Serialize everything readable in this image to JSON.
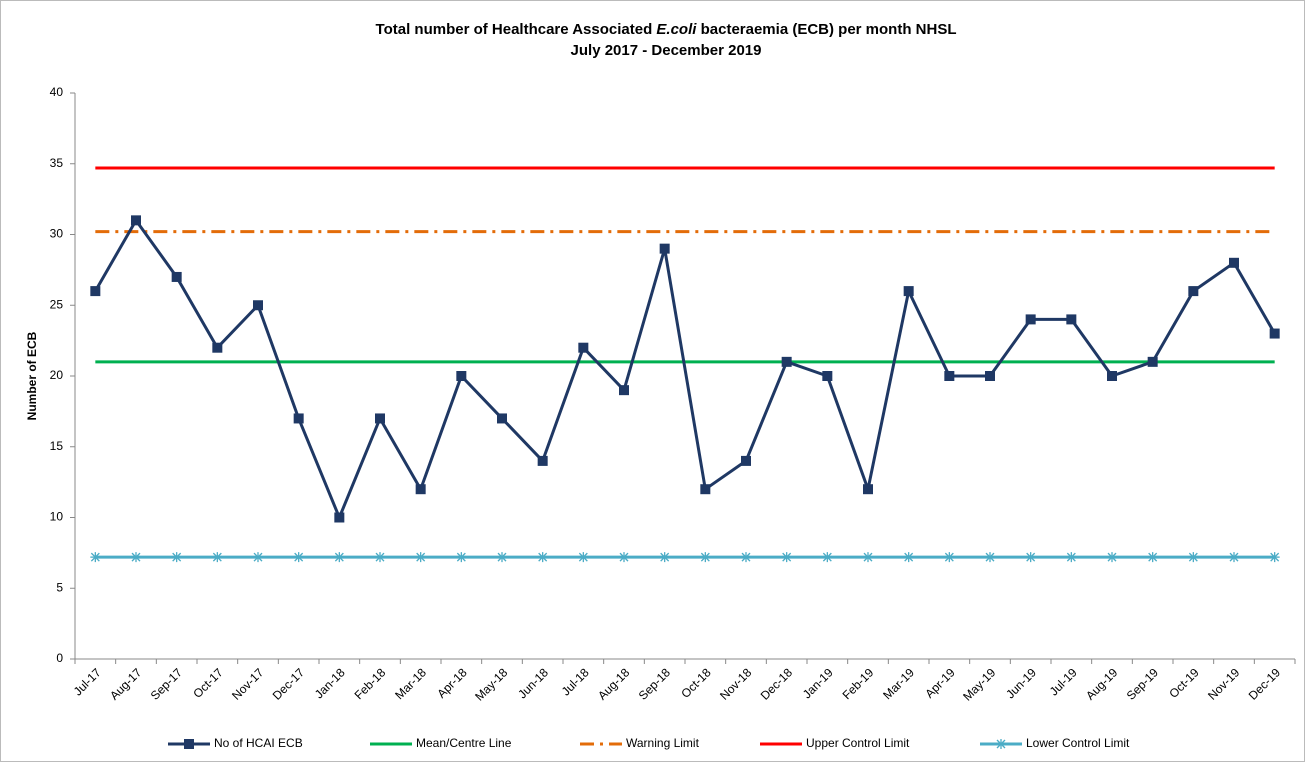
{
  "chart_data": {
    "type": "line",
    "title": [
      "Total number of Healthcare Associated  ",
      "E.coli",
      " bacteraemia (ECB) per month NHSL"
    ],
    "subtitle": "July 2017 - December 2019",
    "y_label": "Number of ECB",
    "categories": [
      "Jul-17",
      "Aug-17",
      "Sep-17",
      "Oct-17",
      "Nov-17",
      "Dec-17",
      "Jan-18",
      "Feb-18",
      "Mar-18",
      "Apr-18",
      "May-18",
      "Jun-18",
      "Jul-18",
      "Aug-18",
      "Sep-18",
      "Oct-18",
      "Nov-18",
      "Dec-18",
      "Jan-19",
      "Feb-19",
      "Mar-19",
      "Apr-19",
      "May-19",
      "Jun-19",
      "Jul-19",
      "Aug-19",
      "Sep-19",
      "Oct-19",
      "Nov-19",
      "Dec-19"
    ],
    "series": [
      {
        "name": "No of HCAI ECB",
        "color": "#1f3864",
        "marker": "square",
        "dash": "solid",
        "values": [
          26,
          31,
          27,
          22,
          25,
          17,
          10,
          17,
          12,
          20,
          17,
          14,
          22,
          19,
          29,
          12,
          14,
          21,
          20,
          12,
          26,
          20,
          20,
          24,
          24,
          20,
          21,
          26,
          28,
          23
        ]
      },
      {
        "name": "Mean/Centre Line",
        "color": "#00b050",
        "marker": "none",
        "dash": "solid",
        "values": [
          21,
          21,
          21,
          21,
          21,
          21,
          21,
          21,
          21,
          21,
          21,
          21,
          21,
          21,
          21,
          21,
          21,
          21,
          21,
          21,
          21,
          21,
          21,
          21,
          21,
          21,
          21,
          21,
          21,
          21
        ]
      },
      {
        "name": "Warning Limit",
        "color": "#e36c09",
        "marker": "none",
        "dash": "dashdot",
        "values": [
          30.2,
          30.2,
          30.2,
          30.2,
          30.2,
          30.2,
          30.2,
          30.2,
          30.2,
          30.2,
          30.2,
          30.2,
          30.2,
          30.2,
          30.2,
          30.2,
          30.2,
          30.2,
          30.2,
          30.2,
          30.2,
          30.2,
          30.2,
          30.2,
          30.2,
          30.2,
          30.2,
          30.2,
          30.2,
          30.2
        ]
      },
      {
        "name": "Upper Control Limit",
        "color": "#ff0000",
        "marker": "none",
        "dash": "solid",
        "values": [
          34.7,
          34.7,
          34.7,
          34.7,
          34.7,
          34.7,
          34.7,
          34.7,
          34.7,
          34.7,
          34.7,
          34.7,
          34.7,
          34.7,
          34.7,
          34.7,
          34.7,
          34.7,
          34.7,
          34.7,
          34.7,
          34.7,
          34.7,
          34.7,
          34.7,
          34.7,
          34.7,
          34.7,
          34.7,
          34.7
        ]
      },
      {
        "name": "Lower Control Limit",
        "color": "#4bacc6",
        "marker": "asterisk",
        "dash": "solid",
        "values": [
          7.2,
          7.2,
          7.2,
          7.2,
          7.2,
          7.2,
          7.2,
          7.2,
          7.2,
          7.2,
          7.2,
          7.2,
          7.2,
          7.2,
          7.2,
          7.2,
          7.2,
          7.2,
          7.2,
          7.2,
          7.2,
          7.2,
          7.2,
          7.2,
          7.2,
          7.2,
          7.2,
          7.2,
          7.2,
          7.2
        ]
      }
    ],
    "ylim": [
      0,
      40
    ],
    "yticks": [
      0,
      5,
      10,
      15,
      20,
      25,
      30,
      35,
      40
    ],
    "grid": false,
    "legend": "bottom"
  }
}
